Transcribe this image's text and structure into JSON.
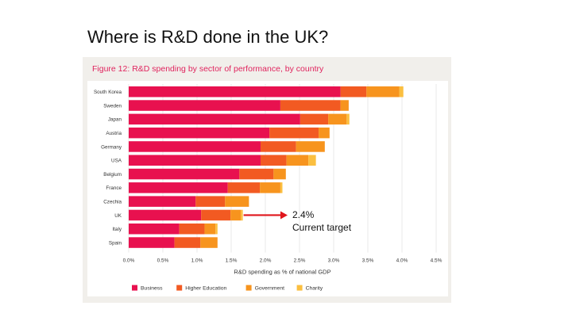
{
  "slide": {
    "title": "Where is R&D done in the UK?"
  },
  "figure": {
    "title": "Figure 12: R&D spending by sector of performance, by country"
  },
  "annotation": {
    "value": "2.4%",
    "label": "Current target"
  },
  "colors": {
    "Business": "#e8114f",
    "Higher Education": "#f25a22",
    "Government": "#f7941e",
    "Charity": "#fbbf40",
    "arrow": "#e0161c"
  },
  "chart_data": {
    "type": "bar",
    "orientation": "horizontal",
    "stacked": true,
    "title": "Figure 12: R&D spending by sector of performance, by country",
    "xlabel": "R&D spending as % of national GDP",
    "ylabel": "",
    "xlim": [
      0,
      4.5
    ],
    "xticks": [
      0,
      0.5,
      1.0,
      1.5,
      2.0,
      2.5,
      3.0,
      3.5,
      4.0,
      4.5
    ],
    "xtick_labels": [
      "0.0%",
      "0.5%",
      "1.0%",
      "1.5%",
      "2.0%",
      "2.5%",
      "3.0%",
      "3.5%",
      "4.0%",
      "4.5%"
    ],
    "grid": true,
    "legend_position": "bottom",
    "categories": [
      "South Korea",
      "Sweden",
      "Japan",
      "Austria",
      "Germany",
      "USA",
      "Belgium",
      "France",
      "Czechia",
      "UK",
      "Italy",
      "Spain"
    ],
    "series": [
      {
        "name": "Business",
        "values": [
          3.1,
          2.22,
          2.51,
          2.06,
          1.93,
          1.93,
          1.62,
          1.45,
          0.98,
          1.06,
          0.74,
          0.67
        ]
      },
      {
        "name": "Higher Education",
        "values": [
          0.38,
          0.88,
          0.41,
          0.72,
          0.52,
          0.38,
          0.5,
          0.47,
          0.43,
          0.43,
          0.37,
          0.38
        ]
      },
      {
        "name": "Government",
        "values": [
          0.48,
          0.12,
          0.27,
          0.16,
          0.42,
          0.32,
          0.18,
          0.3,
          0.35,
          0.15,
          0.16,
          0.25
        ]
      },
      {
        "name": "Charity",
        "values": [
          0.06,
          0.0,
          0.04,
          0.0,
          0.0,
          0.11,
          0.0,
          0.03,
          0.0,
          0.03,
          0.03,
          0.0
        ]
      }
    ],
    "annotations": [
      {
        "text": "2.4%",
        "subtext": "Current target",
        "category": "UK"
      }
    ]
  }
}
